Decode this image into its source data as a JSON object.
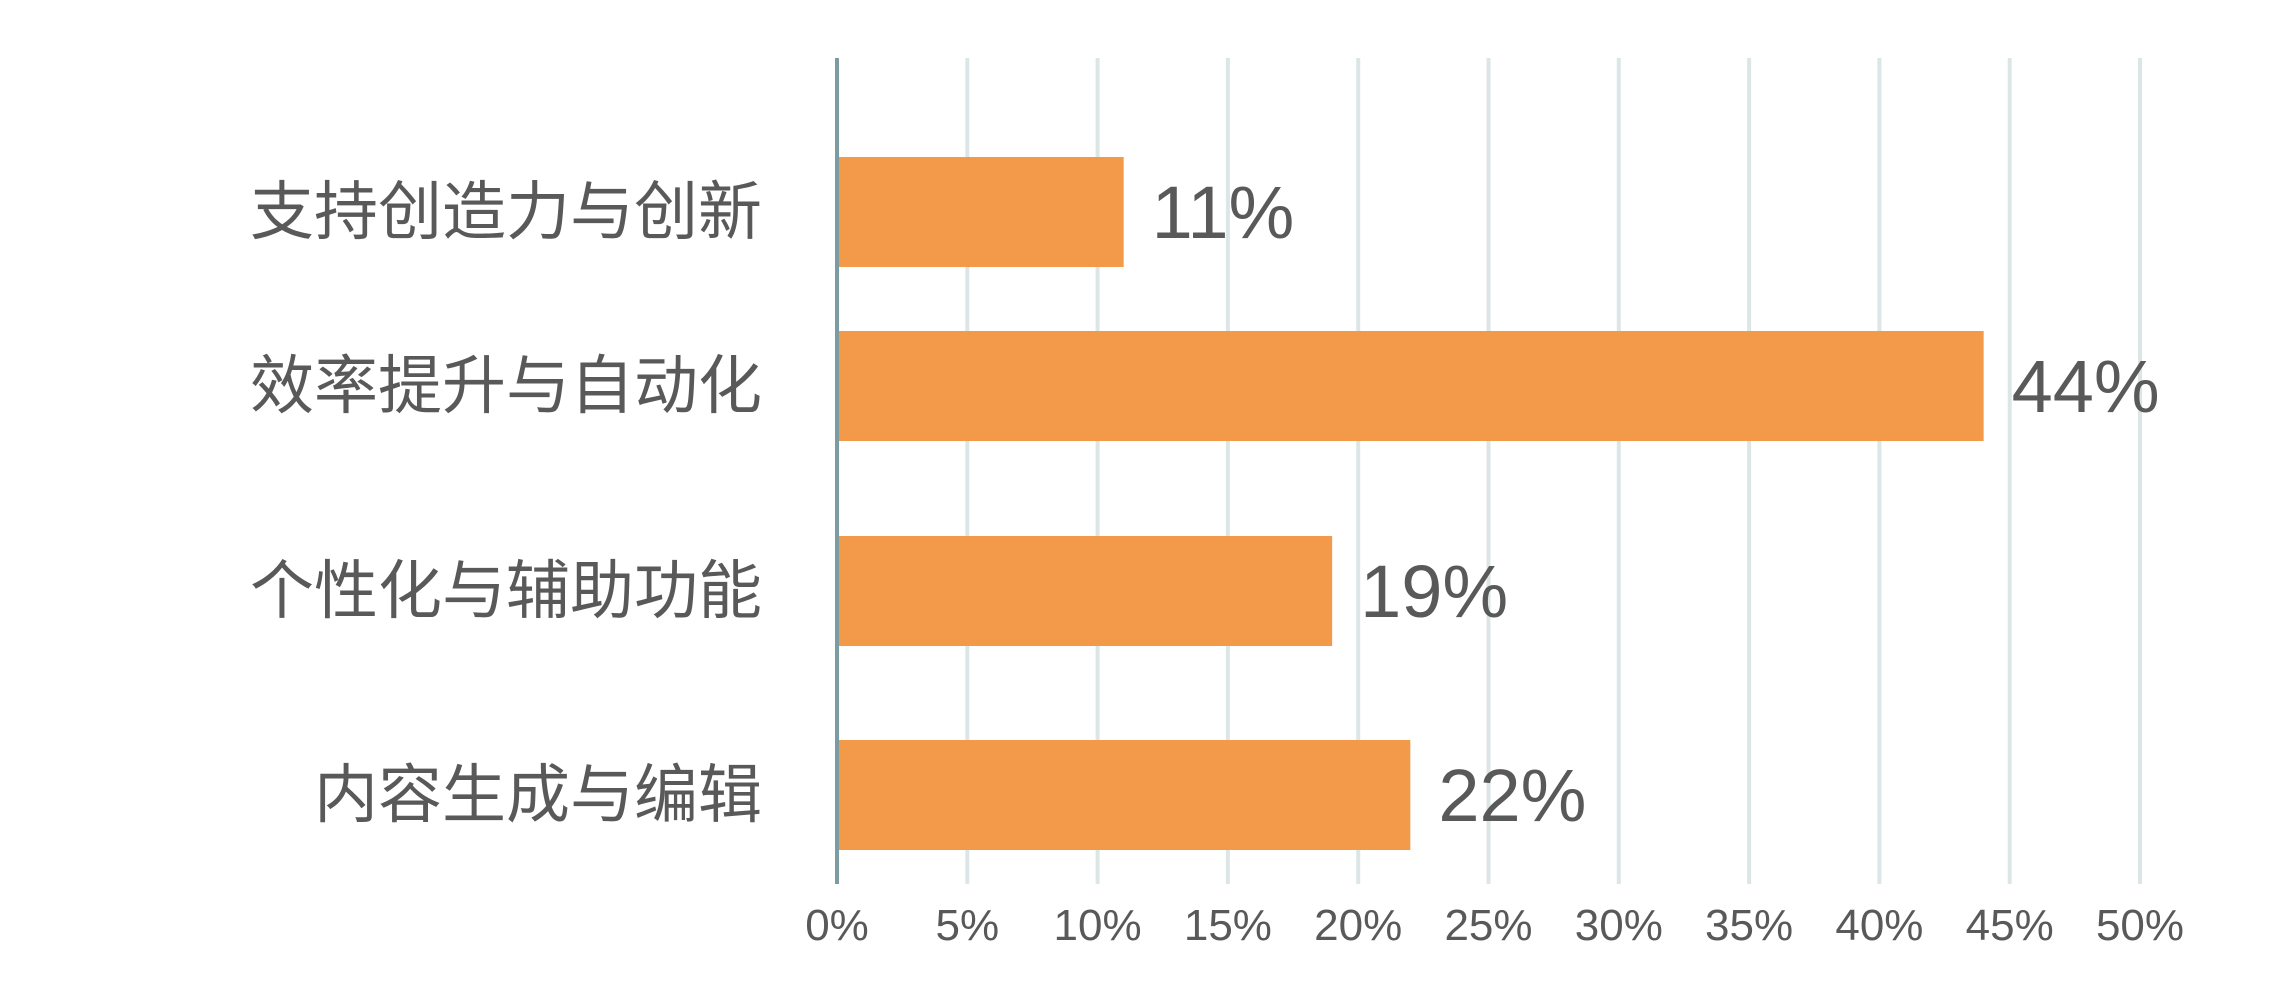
{
  "chart_data": {
    "type": "bar",
    "orientation": "horizontal",
    "categories": [
      "支持创造力与创新",
      "效率提升与自动化",
      "个性化与辅助功能",
      "内容生成与编辑"
    ],
    "values": [
      11,
      44,
      19,
      22
    ],
    "data_labels": [
      "11%",
      "44%",
      "19%",
      "22%"
    ],
    "xlim": [
      0,
      50
    ],
    "x_ticks": [
      "0%",
      "5%",
      "10%",
      "15%",
      "20%",
      "25%",
      "30%",
      "35%",
      "40%",
      "45%",
      "50%"
    ],
    "grid": "vertical",
    "title": "",
    "xlabel": "",
    "ylabel": "",
    "colors": {
      "bar": "#F29A4A",
      "grid": "#DDE6E6",
      "axis": "#7A9CA2",
      "text": "#595959"
    }
  }
}
